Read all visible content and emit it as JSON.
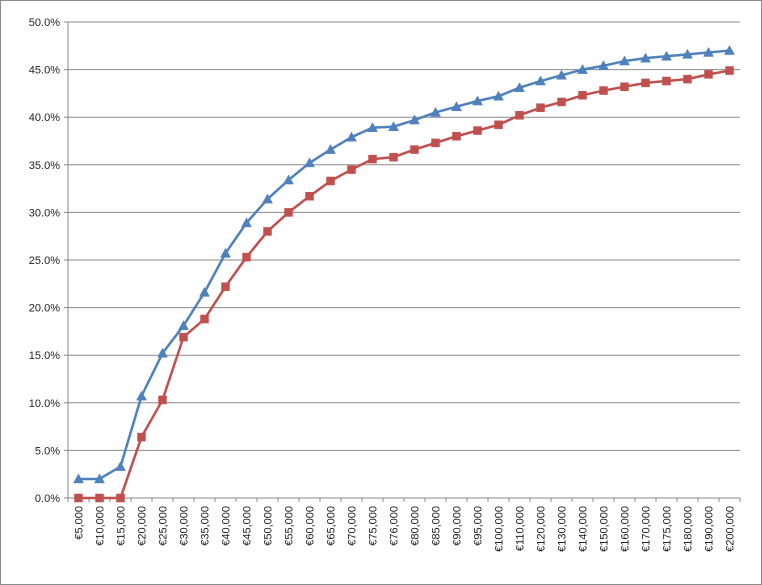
{
  "chart_data": {
    "type": "line",
    "title": "",
    "xlabel": "",
    "ylabel": "",
    "ylim": [
      0,
      50
    ],
    "y_ticks": [
      "0.0%",
      "5.0%",
      "10.0%",
      "15.0%",
      "20.0%",
      "25.0%",
      "30.0%",
      "35.0%",
      "40.0%",
      "45.0%",
      "50.0%"
    ],
    "y_tick_values": [
      0,
      5,
      10,
      15,
      20,
      25,
      30,
      35,
      40,
      45,
      50
    ],
    "grid": "horizontal",
    "legend": "none",
    "categories": [
      "€5,000",
      "€10,000",
      "€15,000",
      "€20,000",
      "€25,000",
      "€30,000",
      "€35,000",
      "€40,000",
      "€45,000",
      "€50,000",
      "€55,000",
      "€60,000",
      "€65,000",
      "€70,000",
      "€75,000",
      "€76,000",
      "€80,000",
      "€85,000",
      "€90,000",
      "€95,000",
      "€100,000",
      "€110,000",
      "€120,000",
      "€130,000",
      "€140,000",
      "€150,000",
      "€160,000",
      "€170,000",
      "€175,000",
      "€180,000",
      "€190,000",
      "€200,000"
    ],
    "series": [
      {
        "color": "#4f81bd",
        "marker": "triangle",
        "values": [
          2.0,
          2.0,
          3.3,
          10.7,
          15.2,
          18.1,
          21.6,
          25.7,
          28.9,
          31.4,
          33.4,
          35.2,
          36.6,
          37.9,
          38.9,
          39.0,
          39.7,
          40.5,
          41.1,
          41.7,
          42.2,
          43.1,
          43.8,
          44.4,
          45.0,
          45.4,
          45.9,
          46.2,
          46.4,
          46.6,
          46.8,
          47.0
        ]
      },
      {
        "color": "#c0504d",
        "marker": "square",
        "values": [
          0.0,
          0.0,
          0.0,
          6.4,
          10.3,
          16.9,
          18.8,
          22.2,
          25.3,
          28.0,
          30.0,
          31.7,
          33.3,
          34.5,
          35.6,
          35.8,
          36.6,
          37.3,
          38.0,
          38.6,
          39.2,
          40.2,
          41.0,
          41.6,
          42.3,
          42.8,
          43.2,
          43.6,
          43.8,
          44.0,
          44.5,
          44.9
        ]
      }
    ]
  }
}
